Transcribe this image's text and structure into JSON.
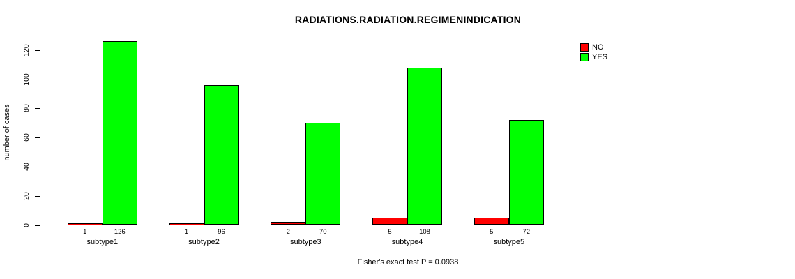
{
  "chart_data": {
    "type": "bar",
    "title": "RADIATIONS.RADIATION.REGIMENINDICATION",
    "xlabel": "",
    "ylabel": "number of cases",
    "categories": [
      "subtype1",
      "subtype2",
      "subtype3",
      "subtype4",
      "subtype5"
    ],
    "series": [
      {
        "name": "NO",
        "color": "#ff0000",
        "values": [
          1,
          1,
          2,
          5,
          5
        ]
      },
      {
        "name": "YES",
        "color": "#00ff00",
        "values": [
          126,
          96,
          70,
          108,
          72
        ]
      }
    ],
    "bar_value_labels": [
      [
        "1",
        "126"
      ],
      [
        "1",
        "96"
      ],
      [
        "2",
        "70"
      ],
      [
        "5",
        "108"
      ],
      [
        "5",
        "72"
      ]
    ],
    "yticks": [
      0,
      20,
      40,
      60,
      80,
      100,
      120
    ],
    "ylim": [
      0,
      131
    ],
    "grid": false,
    "legend_position": "top-right",
    "annotation": "Fisher's exact test P = 0.0938"
  },
  "legend": {
    "items": [
      {
        "label": "NO",
        "color": "#ff0000"
      },
      {
        "label": "YES",
        "color": "#00ff00"
      }
    ]
  }
}
